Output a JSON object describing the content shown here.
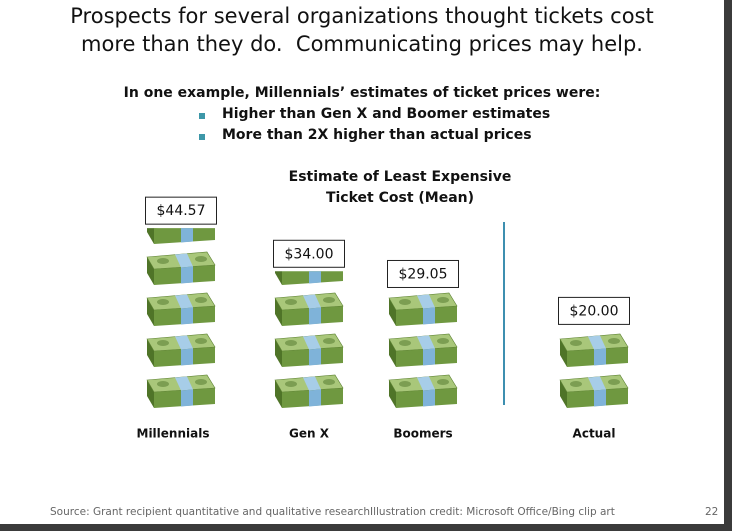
{
  "slide_title": [
    "Prospects for several organizations thought tickets cost",
    "more than they do.  Communicating prices may help."
  ],
  "intro": "In one example, Millennials’ estimates of ticket prices were:",
  "bullets": [
    "Higher than Gen X and Boomer estimates",
    "More than 2X higher than actual prices"
  ],
  "chart_data": {
    "type": "pictograph",
    "title": [
      "Estimate of Least Expensive",
      "Ticket Cost (Mean)"
    ],
    "categories": [
      "Millennials",
      "Gen X",
      "Boomers",
      "Actual"
    ],
    "values": [
      44.57,
      34.0,
      29.05,
      20.0
    ],
    "value_labels": [
      "$44.57",
      "$34.00",
      "$29.05",
      "$20.00"
    ]
  },
  "footer": {
    "source": "Source:  Grant recipient quantitative and qualitative research",
    "credit": "Illustration credit:  Microsoft Office/Bing clip art",
    "page": "22"
  }
}
